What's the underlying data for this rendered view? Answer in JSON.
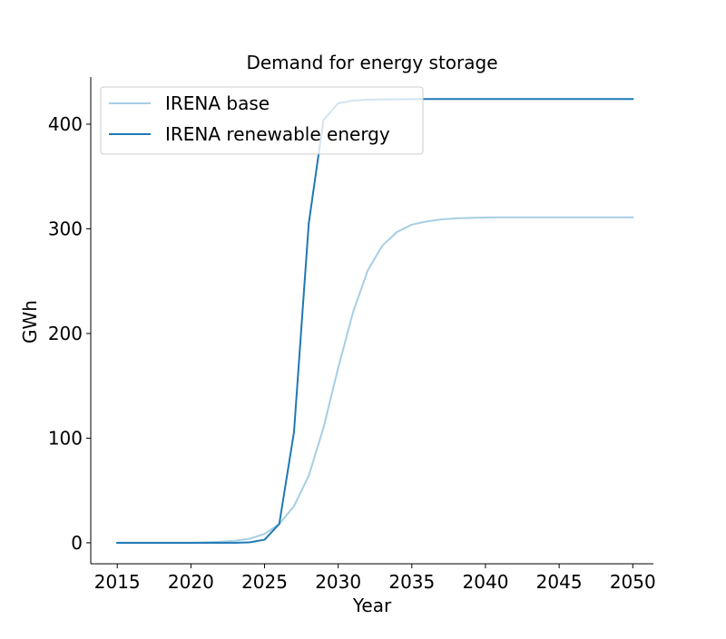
{
  "chart_data": {
    "type": "line",
    "title": "Demand for energy storage",
    "xlabel": "Year",
    "ylabel": "GWh",
    "xlim": [
      2013.2,
      2051.4
    ],
    "ylim": [
      -20,
      445
    ],
    "xticks": [
      2015,
      2020,
      2025,
      2030,
      2035,
      2040,
      2045,
      2050
    ],
    "yticks": [
      0,
      100,
      200,
      300,
      400
    ],
    "grid": false,
    "legend_position": "upper-left",
    "x": [
      2015,
      2016,
      2017,
      2018,
      2019,
      2020,
      2021,
      2022,
      2023,
      2024,
      2025,
      2026,
      2027,
      2028,
      2029,
      2030,
      2031,
      2032,
      2033,
      2034,
      2035,
      2036,
      2037,
      2038,
      2039,
      2040,
      2041,
      2042,
      2043,
      2044,
      2045,
      2046,
      2047,
      2048,
      2049,
      2050
    ],
    "series": [
      {
        "name": "IRENA base",
        "color": "#a6cee3",
        "values": [
          0,
          0,
          0,
          0,
          0,
          0,
          0.5,
          1,
          2,
          4,
          8.5,
          18,
          35,
          64,
          110,
          167,
          220,
          260,
          284,
          297,
          304,
          307,
          309,
          310,
          310.5,
          310.8,
          311,
          311,
          311,
          311,
          311,
          311,
          311,
          311,
          311,
          311
        ]
      },
      {
        "name": "IRENA renewable energy",
        "color": "#1f78b4",
        "values": [
          0,
          0,
          0,
          0,
          0,
          0,
          0,
          0,
          0,
          0.5,
          3,
          18,
          106,
          305,
          404,
          420,
          422.5,
          423.3,
          423.6,
          423.8,
          423.9,
          424,
          424,
          424,
          424,
          424,
          424,
          424,
          424,
          424,
          424,
          424,
          424,
          424,
          424,
          424
        ]
      }
    ]
  }
}
